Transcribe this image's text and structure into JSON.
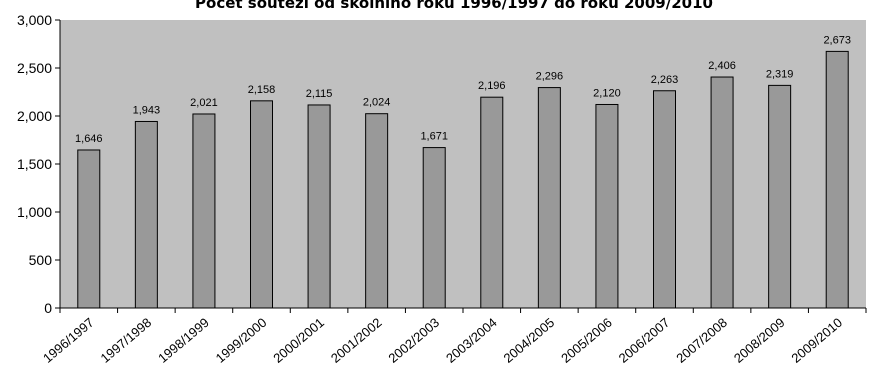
{
  "chart_data": {
    "type": "bar",
    "title": "Počet soutěží od školního roku 1996/1997 do roku 2009/2010",
    "xlabel": "",
    "ylabel": "",
    "categories": [
      "1996/1997",
      "1997/1998",
      "1998/1999",
      "1999/2000",
      "2000/2001",
      "2001/2002",
      "2002/2003",
      "2003/2004",
      "2004/2005",
      "2005/2006",
      "2006/2007",
      "2007/2008",
      "2008/2009",
      "2009/2010"
    ],
    "values": [
      1646,
      1943,
      2021,
      2158,
      2115,
      2024,
      1671,
      2196,
      2296,
      2120,
      2263,
      2406,
      2319,
      2673
    ],
    "data_labels": [
      "1,646",
      "1,943",
      "2,021",
      "2,158",
      "2,115",
      "2,024",
      "1,671",
      "2,196",
      "2,296",
      "2,120",
      "2,263",
      "2,406",
      "2,319",
      "2,673"
    ],
    "ylim": [
      0,
      3000
    ],
    "yticks": [
      0,
      500,
      1000,
      1500,
      2000,
      2500,
      3000
    ],
    "ytick_labels": [
      "0",
      "500",
      "1,000",
      "1,500",
      "2,000",
      "2,500",
      "3,000"
    ],
    "grid": false,
    "legend": "none",
    "colors": {
      "bar_fill": "#999999",
      "bar_stroke": "#000000",
      "plot_background": "#c0c0c0",
      "axis": "#000000"
    }
  }
}
